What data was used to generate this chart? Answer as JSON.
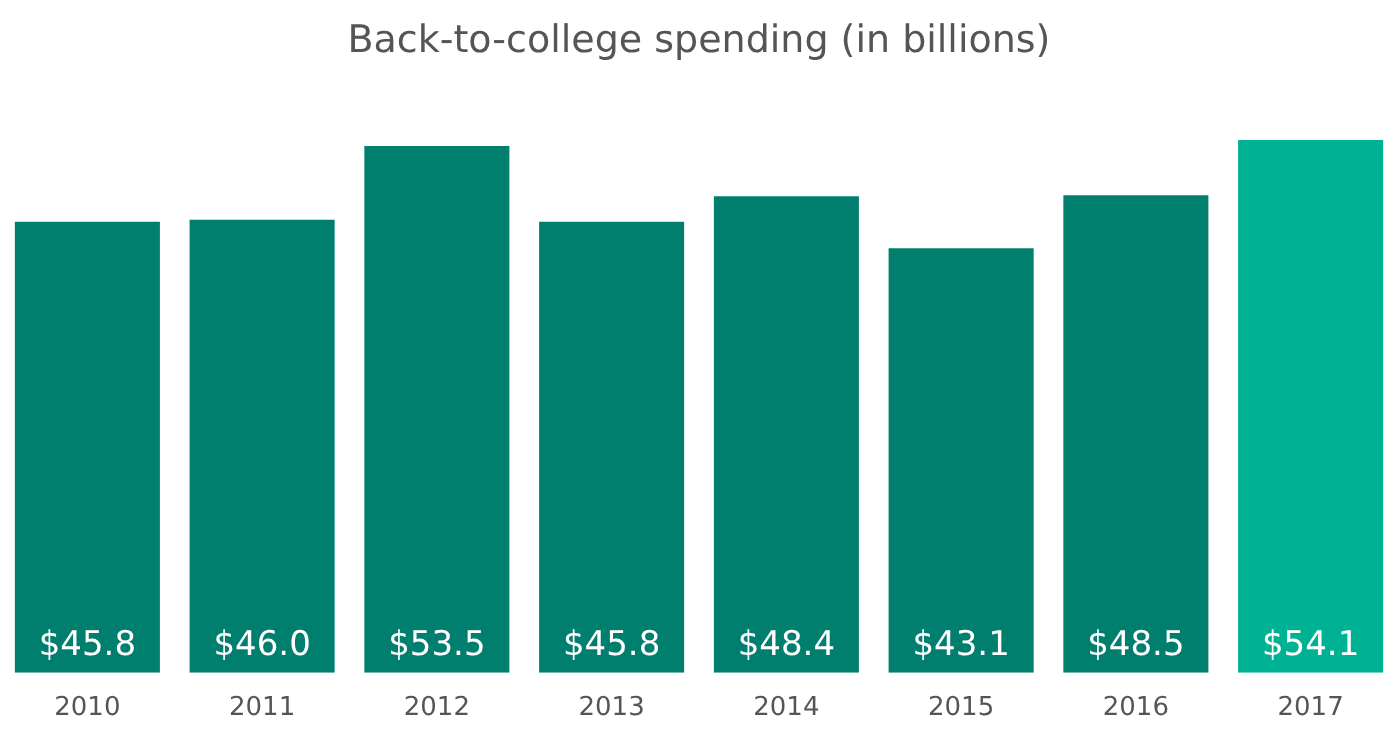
{
  "chart_data": {
    "type": "bar",
    "title": "Back-to-college spending (in billions)",
    "categories": [
      "2010",
      "2011",
      "2012",
      "2013",
      "2014",
      "2015",
      "2016",
      "2017"
    ],
    "values": [
      45.8,
      46.0,
      53.5,
      45.8,
      48.4,
      43.1,
      48.5,
      54.1
    ],
    "colors": [
      "#007e6e",
      "#007e6e",
      "#007e6e",
      "#007e6e",
      "#007e6e",
      "#007e6e",
      "#007e6e",
      "#00b294"
    ],
    "value_labels": [
      "$45.8",
      "$46.0",
      "$53.5",
      "$45.8",
      "$48.4",
      "$43.1",
      "$48.5",
      "$54.1"
    ],
    "grid": false,
    "legend": false
  }
}
